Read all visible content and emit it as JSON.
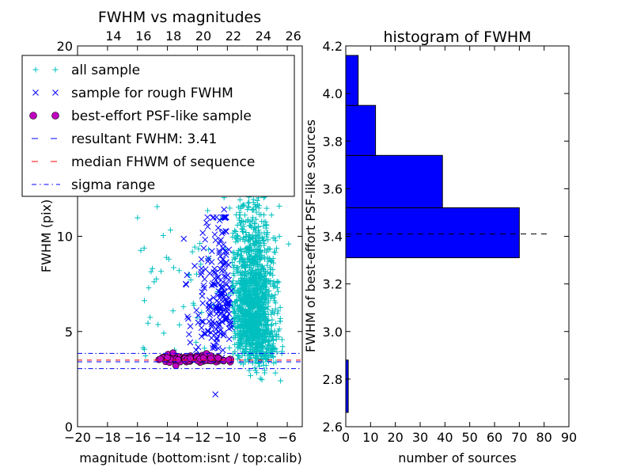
{
  "chart_data": [
    {
      "type": "scatter",
      "title": "FWHM vs magnitudes",
      "xlabel": "magnitude (bottom:isnt / top:calib)",
      "ylabel": "FWHM (pix)",
      "xlim": [
        -20,
        -5
      ],
      "ylim": [
        0,
        20
      ],
      "xticks": [
        "−20",
        "−18",
        "−16",
        "−14",
        "−12",
        "−10",
        "−8",
        "−6"
      ],
      "xtick_values": [
        -20,
        -18,
        -16,
        -14,
        -12,
        -10,
        -8,
        -6
      ],
      "yticks": [
        "0",
        "5",
        "10",
        "20"
      ],
      "ytick_values": [
        0,
        5,
        10,
        20
      ],
      "top_axis": {
        "ticks": [
          "14",
          "16",
          "18",
          "20",
          "22",
          "24",
          "26"
        ],
        "bottom_equivalent": [
          -17.6,
          -15.6,
          -13.6,
          -11.6,
          -9.6,
          -7.6,
          -5.6
        ]
      },
      "legend_position": "upper-left",
      "legend": [
        {
          "label": "all sample",
          "marker": "plus",
          "color": "#00bfbf"
        },
        {
          "label": "sample for rough FWHM",
          "marker": "x",
          "color": "#0000ff"
        },
        {
          "label": "best-effort PSF-like sample",
          "marker": "circle",
          "color": "#bf00bf"
        },
        {
          "label": "resultant FWHM: 3.41",
          "marker": "dash",
          "color": "#0000ff"
        },
        {
          "label": "median FHWM of sequence",
          "marker": "dash",
          "color": "#ff0000"
        },
        {
          "label": "sigma range",
          "marker": "dashdot",
          "color": "#0000ff"
        }
      ],
      "hlines": {
        "resultant_fwhm": 3.41,
        "median_fwhm": 3.5,
        "sigma_low": 3.05,
        "sigma_high": 3.85
      },
      "rough_sample_cut_mag": -9.7,
      "outlier_point": [
        -10.8,
        1.7
      ]
    },
    {
      "type": "bar",
      "orientation": "horizontal",
      "title": "histogram of FWHM",
      "xlabel": "number of sources",
      "ylabel": "FWHM of best-effort PSF-like sources",
      "xlim": [
        0,
        90
      ],
      "ylim": [
        2.6,
        4.2
      ],
      "xticks": [
        "0",
        "10",
        "20",
        "30",
        "40",
        "50",
        "60",
        "70",
        "80",
        "90"
      ],
      "xtick_values": [
        0,
        10,
        20,
        30,
        40,
        50,
        60,
        70,
        80,
        90
      ],
      "yticks": [
        "2.6",
        "2.8",
        "3.0",
        "3.2",
        "3.4",
        "3.6",
        "3.8",
        "4.0",
        "4.2"
      ],
      "ytick_values": [
        2.6,
        2.8,
        3.0,
        3.2,
        3.4,
        3.6,
        3.8,
        4.0,
        4.2
      ],
      "bars": [
        {
          "low": 2.66,
          "high": 2.88,
          "count": 1
        },
        {
          "low": 3.31,
          "high": 3.52,
          "count": 70
        },
        {
          "low": 3.52,
          "high": 3.74,
          "count": 39
        },
        {
          "low": 3.74,
          "high": 3.95,
          "count": 12
        },
        {
          "low": 3.95,
          "high": 4.16,
          "count": 5
        }
      ],
      "bar_color": "#0000ff",
      "reference_line": 3.41,
      "reference_line_end": 82
    }
  ]
}
